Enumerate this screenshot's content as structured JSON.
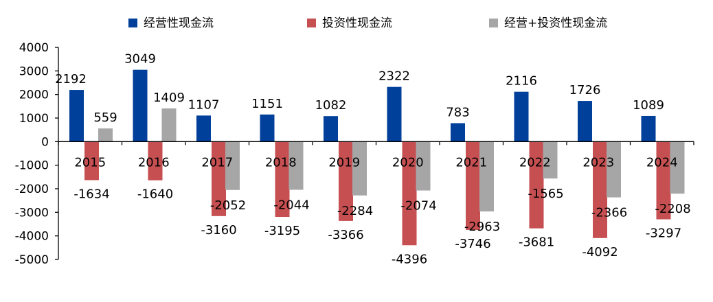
{
  "chart_data": {
    "type": "bar",
    "categories": [
      "2015",
      "2016",
      "2017",
      "2018",
      "2019",
      "2020",
      "2021",
      "2022",
      "2023",
      "2024"
    ],
    "series": [
      {
        "name": "经营性现金流",
        "color": "#003f9a",
        "values": [
          2192,
          3049,
          1107,
          1151,
          1082,
          2322,
          783,
          2116,
          1726,
          1089
        ]
      },
      {
        "name": "投资性现金流",
        "color": "#c64f51",
        "values": [
          -1634,
          -1640,
          -3160,
          -3195,
          -3366,
          -4396,
          -3746,
          -3681,
          -4092,
          -3297
        ]
      },
      {
        "name": "经营+投资性现金流",
        "color": "#a6a6a6",
        "values": [
          559,
          1409,
          -2052,
          -2044,
          -2284,
          -2074,
          -2963,
          -1565,
          -2366,
          -2208
        ]
      }
    ],
    "ylim": [
      -5000,
      4000
    ],
    "yticks": [
      4000,
      3000,
      2000,
      1000,
      0,
      -1000,
      -2000,
      -3000,
      -4000,
      -5000
    ],
    "legend_position": "top",
    "grid": false
  }
}
